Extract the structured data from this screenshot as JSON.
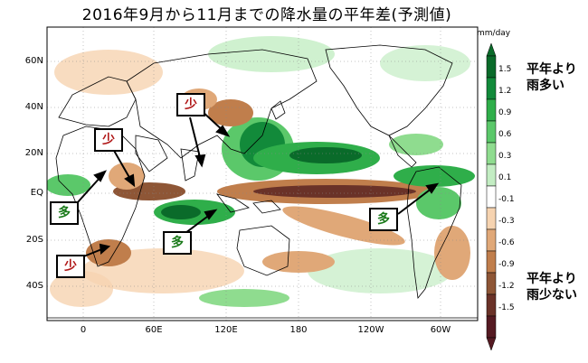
{
  "title": "2016年9月から11月までの降水量の平年差(予測値)",
  "legend": {
    "unit": "mm/day",
    "ticks": [
      "1.5",
      "1.2",
      "0.9",
      "0.6",
      "0.3",
      "0.1",
      "-0.1",
      "-0.3",
      "-0.6",
      "-0.9",
      "-1.2",
      "-1.5"
    ],
    "wet_caption_line1": "平年より",
    "wet_caption_line2": "雨多い",
    "dry_caption_line1": "平年より",
    "dry_caption_line2": "雨少ない",
    "colors": [
      "#0a6b2a",
      "#128a3a",
      "#2fae4a",
      "#5bc86a",
      "#8fdc8f",
      "#c3edc3",
      "#ffffff",
      "#f6d3b0",
      "#e0a878",
      "#c07e4c",
      "#8e5636",
      "#6a3228",
      "#551a22"
    ]
  },
  "axes": {
    "lat_labels": [
      "60N",
      "40N",
      "20N",
      "EQ",
      "20S",
      "40S"
    ],
    "lon_labels": [
      "0",
      "60E",
      "120E",
      "180",
      "120W",
      "60W"
    ]
  },
  "callouts": [
    {
      "text": "少",
      "kind": "dry"
    },
    {
      "text": "少",
      "kind": "dry"
    },
    {
      "text": "多",
      "kind": "wet"
    },
    {
      "text": "多",
      "kind": "wet"
    },
    {
      "text": "少",
      "kind": "dry"
    },
    {
      "text": "多",
      "kind": "wet"
    }
  ]
}
